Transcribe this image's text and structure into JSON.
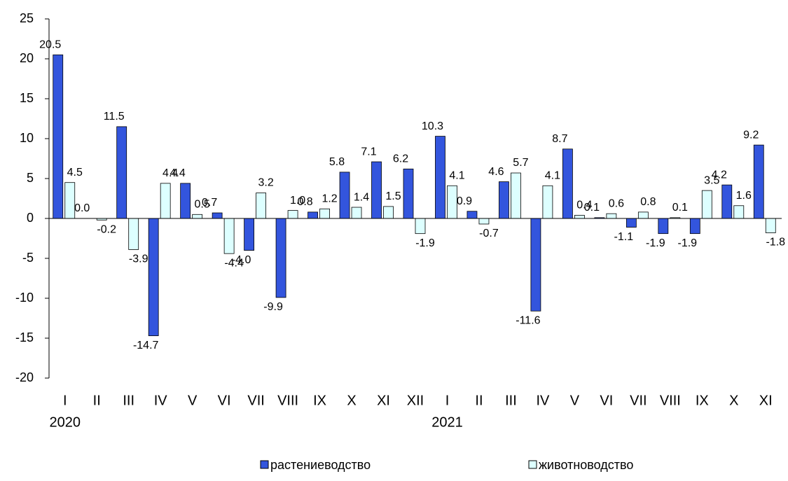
{
  "chart_data": {
    "type": "bar",
    "categories": [
      "I",
      "II",
      "III",
      "IV",
      "V",
      "VI",
      "VII",
      "VIII",
      "IX",
      "X",
      "XI",
      "XII",
      "I",
      "II",
      "III",
      "IV",
      "V",
      "VI",
      "VII",
      "VIII",
      "IX",
      "X",
      "XI"
    ],
    "groups": [
      {
        "label": "2020",
        "size": 12
      },
      {
        "label": "2021",
        "size": 11
      }
    ],
    "series": [
      {
        "name": "растениеводство",
        "color": "#3355dd",
        "values": [
          20.5,
          0.0,
          11.5,
          -14.7,
          4.4,
          0.7,
          -4.0,
          -9.9,
          0.8,
          5.8,
          7.1,
          6.2,
          10.3,
          0.9,
          4.6,
          -11.6,
          8.7,
          0.1,
          -1.1,
          -1.9,
          -1.9,
          4.2,
          9.2
        ],
        "value_labels": [
          "20.5",
          "0.0",
          "11.5",
          "-14.7",
          "4.4",
          "0.7",
          "-4.0",
          "-9.9",
          "0.8",
          "5.8",
          "7.1",
          "6.2",
          "10.3",
          "0.9",
          "4.6",
          "-11.6",
          "8.7",
          "0.1",
          "-1.1",
          "-1.9",
          "-1.9",
          "4.2",
          "9.2"
        ]
      },
      {
        "name": "животноводство",
        "color": "#ddffff",
        "values": [
          4.5,
          -0.2,
          -3.9,
          4.4,
          0.5,
          -4.4,
          3.2,
          1.0,
          1.2,
          1.4,
          1.5,
          -1.9,
          4.1,
          -0.7,
          5.7,
          4.1,
          0.4,
          0.6,
          0.8,
          0.1,
          3.5,
          1.6,
          -1.8
        ],
        "value_labels": [
          "4.5",
          "-0.2",
          "-3.9",
          "4.4",
          "0.5",
          "-4.4",
          "3.2",
          "1.0",
          "1.2",
          "1.4",
          "1.5",
          "-1.9",
          "4.1",
          "-0.7",
          "5.7",
          "4.1",
          "0.4",
          "0.6",
          "0.8",
          "0.1",
          "3.5",
          "1.6",
          "-1.8"
        ]
      }
    ],
    "ylim": [
      -20,
      25
    ],
    "yticks": [
      -20,
      -15,
      -10,
      -5,
      0,
      5,
      10,
      15,
      20,
      25
    ],
    "legend": "bottom"
  }
}
